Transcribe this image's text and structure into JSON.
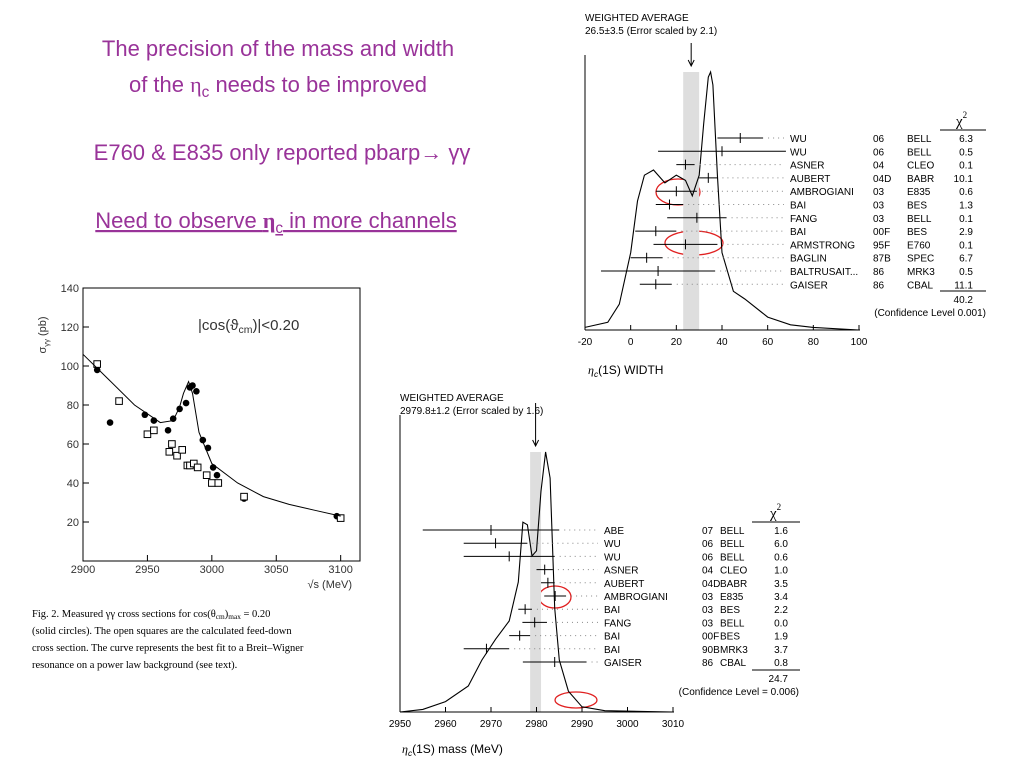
{
  "headline": {
    "line1": "The precision of the mass and width",
    "line2": [
      "of the ",
      "η",
      "c",
      " needs to be improved"
    ],
    "line3": "E760 & E835 only reported pbarp→ γγ",
    "line4": [
      "Need to observe ",
      "η",
      "c",
      " in more channels"
    ]
  },
  "chart_data": [
    {
      "type": "scatter",
      "ylabel": [
        "σ",
        "γγ",
        " (pb)"
      ],
      "xlabel": "√s  (MeV)",
      "annotation": [
        "|cos(ϑ",
        "cm",
        ")|<0.20"
      ],
      "xlim": [
        2900,
        3115
      ],
      "ylim": [
        0,
        140
      ],
      "xticks": [
        2900,
        2950,
        3000,
        3050,
        3100
      ],
      "yticks": [
        20,
        40,
        60,
        80,
        100,
        120,
        140
      ],
      "series": [
        {
          "marker": "circle",
          "color": "#000000",
          "x": [
            2911,
            2921,
            2948,
            2955,
            2966,
            2970,
            2975,
            2980,
            2983,
            2985,
            2988,
            2993,
            2997,
            3001,
            3004,
            3025,
            3097
          ],
          "values": [
            98,
            71,
            75,
            72,
            67,
            73,
            78,
            81,
            89,
            90,
            87,
            62,
            58,
            48,
            44,
            32,
            23
          ]
        },
        {
          "marker": "square",
          "color": "#000000",
          "x": [
            2911,
            2928,
            2950,
            2955,
            2967,
            2969,
            2973,
            2977,
            2981,
            2983,
            2986,
            2989,
            2996,
            3000,
            3005,
            3025,
            3100
          ],
          "values": [
            101,
            82,
            65,
            67,
            56,
            60,
            54,
            57,
            49,
            49,
            50,
            48,
            44,
            40,
            40,
            33,
            22
          ]
        },
        {
          "marker": "line",
          "color": "#000000",
          "x": [
            2900,
            2920,
            2940,
            2960,
            2970,
            2975,
            2978,
            2982,
            2985,
            2990,
            3000,
            3020,
            3040,
            3060,
            3080,
            3100
          ],
          "values": [
            106,
            93,
            80,
            71,
            72,
            79,
            86,
            92,
            86,
            66,
            50,
            40,
            33,
            29,
            26,
            23
          ]
        }
      ],
      "caption": [
        [
          "Fig. 2. Measured γγ cross sections for cos(θ",
          "cm",
          ")",
          "max",
          " = 0.20"
        ],
        "(solid circles). The open squares are the calculated feed-down",
        "cross section. The curve represents the best fit to a Breit–Wigner",
        "resonance on a power law background (see text)."
      ]
    },
    {
      "type": "ideogram",
      "title": "WEIGHTED AVERAGE",
      "subtitle": "26.5±3.5 (Error scaled by 2.1)",
      "average": 26.5,
      "average_error": 3.5,
      "xlabel": [
        "η",
        "c",
        "(1S) WIDTH"
      ],
      "xlim": [
        -20,
        100
      ],
      "xticks": [
        -20,
        0,
        20,
        40,
        60,
        80,
        100
      ],
      "ylim": [
        0,
        1
      ],
      "curve": {
        "x": [
          -20,
          -10,
          -5,
          0,
          3,
          6,
          10,
          15,
          20,
          24,
          27,
          30,
          32,
          34,
          35,
          36,
          38,
          40,
          45,
          50,
          60,
          70,
          80,
          100
        ],
        "values": [
          0.01,
          0.03,
          0.1,
          0.3,
          0.5,
          0.6,
          0.62,
          0.57,
          0.6,
          0.58,
          0.52,
          0.6,
          0.8,
          0.98,
          1.0,
          0.95,
          0.6,
          0.3,
          0.15,
          0.12,
          0.05,
          0.02,
          0.01,
          0
        ]
      },
      "chi2_header": [
        "χ",
        "2"
      ],
      "measurements": [
        {
          "name": "WU",
          "year": "06",
          "experiment": "BELL",
          "chi2": "6.3",
          "value": 48,
          "error": 10
        },
        {
          "name": "WU",
          "year": "06",
          "experiment": "BELL",
          "chi2": "0.5",
          "value": 40,
          "error": 28
        },
        {
          "name": "ASNER",
          "year": "04",
          "experiment": "CLEO",
          "chi2": "0.1",
          "value": 24,
          "error": 4
        },
        {
          "name": "AUBERT",
          "year": "04D",
          "experiment": "BABR",
          "chi2": "10.1",
          "value": 34,
          "error": 4
        },
        {
          "name": "AMBROGIANI",
          "year": "03",
          "experiment": "E835",
          "chi2": "0.6",
          "value": 20,
          "error": 9
        },
        {
          "name": "BAI",
          "year": "03",
          "experiment": "BES",
          "chi2": "1.3",
          "value": 17,
          "error": 6
        },
        {
          "name": "FANG",
          "year": "03",
          "experiment": "BELL",
          "chi2": "0.1",
          "value": 29,
          "error": 13
        },
        {
          "name": "BAI",
          "year": "00F",
          "experiment": "BES",
          "chi2": "2.9",
          "value": 11,
          "error": 9
        },
        {
          "name": "ARMSTRONG",
          "year": "95F",
          "experiment": "E760",
          "chi2": "0.1",
          "value": 24,
          "error": 14
        },
        {
          "name": "BAGLIN",
          "year": "87B",
          "experiment": "SPEC",
          "chi2": "6.7",
          "value": 7,
          "error": 7
        },
        {
          "name": "BALTRUSAIT...",
          "year": "86",
          "experiment": "MRK3",
          "chi2": "0.5",
          "value": 12,
          "error": 25
        },
        {
          "name": "GAISER",
          "year": "86",
          "experiment": "CBAL",
          "chi2": "11.1",
          "value": 11,
          "error": 7
        }
      ],
      "chi2_total": "40.2",
      "confidence": "(Confidence Level  0.001)"
    },
    {
      "type": "ideogram",
      "title": "WEIGHTED AVERAGE",
      "subtitle": "2979.8±1.2 (Error scaled by 1.6)",
      "average": 2979.8,
      "average_error": 1.2,
      "xlabel": [
        "η",
        "c",
        "(1S) mass (MeV)"
      ],
      "xlim": [
        2950,
        3010
      ],
      "xticks": [
        2950,
        2960,
        2970,
        2980,
        2990,
        3000,
        3010
      ],
      "ylim": [
        0,
        1
      ],
      "curve": {
        "x": [
          2950,
          2955,
          2960,
          2965,
          2968,
          2971,
          2974,
          2976,
          2977,
          2978,
          2979,
          2980,
          2981,
          2982,
          2983,
          2984,
          2985,
          2987,
          2990,
          2995,
          3010
        ],
        "values": [
          0,
          0.01,
          0.04,
          0.1,
          0.2,
          0.28,
          0.35,
          0.5,
          0.73,
          0.72,
          0.6,
          0.62,
          0.85,
          1.0,
          0.9,
          0.4,
          0.2,
          0.08,
          0.02,
          0.005,
          0
        ]
      },
      "chi2_header": [
        "χ",
        "2"
      ],
      "measurements": [
        {
          "name": "ABE",
          "year": "07",
          "experiment": "BELL",
          "chi2": "1.6",
          "value": 2970,
          "error": 15
        },
        {
          "name": "WU",
          "year": "06",
          "experiment": "BELL",
          "chi2": "6.0",
          "value": 2971,
          "error": 7
        },
        {
          "name": "WU",
          "year": "06",
          "experiment": "BELL",
          "chi2": "0.6",
          "value": 2974,
          "error": 10
        },
        {
          "name": "ASNER",
          "year": "04",
          "experiment": "CLEO",
          "chi2": "1.0",
          "value": 2981.8,
          "error": 1.8
        },
        {
          "name": "AUBERT",
          "year": "04D",
          "experiment": "BABR",
          "chi2": "3.5",
          "value": 2982.5,
          "error": 1.5
        },
        {
          "name": "AMBROGIANI",
          "year": "03",
          "experiment": "E835",
          "chi2": "3.4",
          "value": 2984.1,
          "error": 2.4
        },
        {
          "name": "BAI",
          "year": "03",
          "experiment": "BES",
          "chi2": "2.2",
          "value": 2977.5,
          "error": 1.5
        },
        {
          "name": "FANG",
          "year": "03",
          "experiment": "BELL",
          "chi2": "0.0",
          "value": 2979.6,
          "error": 2.7
        },
        {
          "name": "BAI",
          "year": "00F",
          "experiment": "BES",
          "chi2": "1.9",
          "value": 2976.3,
          "error": 2.3
        },
        {
          "name": "BAI",
          "year": "90B",
          "experiment": "MRK3",
          "chi2": "3.7",
          "value": 2969,
          "error": 5
        },
        {
          "name": "GAISER",
          "year": "86",
          "experiment": "CBAL",
          "chi2": "0.8",
          "value": 2984,
          "error": 7
        }
      ],
      "chi2_total": "24.7",
      "confidence": "(Confidence Level = 0.006)"
    }
  ]
}
